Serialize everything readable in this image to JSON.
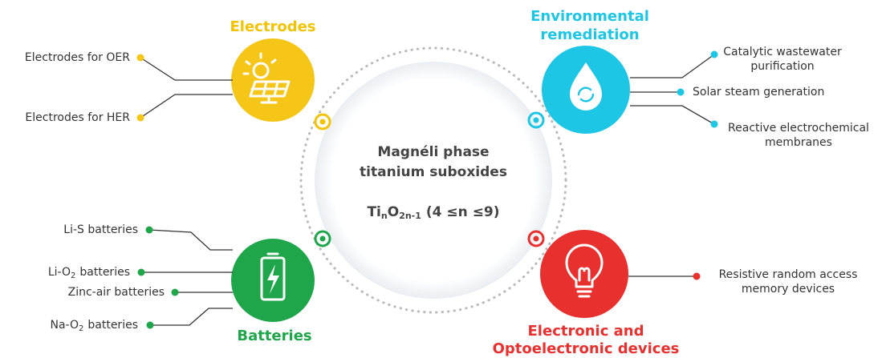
{
  "center": {
    "title": [
      "Magnéli phase",
      "titanium suboxides"
    ],
    "formula": [
      "Ti",
      "n",
      "O",
      "2n-1",
      "(4 ≤n ≤9)"
    ]
  },
  "applications": [
    {
      "title": [
        "Electrodes"
      ],
      "items": [
        {
          "text": "Electrodes for OER"
        },
        {
          "text": "Electrodes for HER"
        }
      ]
    },
    {
      "title": [
        "Environmental",
        "remediation"
      ],
      "items": [
        {
          "lines": [
            "Catalytic wastewater",
            "purification"
          ]
        },
        {
          "text": "Solar steam generation"
        },
        {
          "lines": [
            "Reactive electrochemical",
            "membranes"
          ]
        }
      ]
    },
    {
      "title": [
        "Batteries"
      ],
      "items": [
        {
          "text": "Li-S batteries"
        },
        {
          "parts": [
            "Li-O",
            "2",
            "batteries"
          ]
        },
        {
          "text": "Zinc-air batteries"
        },
        {
          "parts": [
            "Na-O",
            "2",
            "batteries"
          ]
        }
      ]
    },
    {
      "title": [
        "Electronic and",
        "Optoelectronic devices"
      ],
      "items": [
        {
          "lines": [
            "Resistive random access",
            "memory devices"
          ]
        }
      ]
    }
  ]
}
